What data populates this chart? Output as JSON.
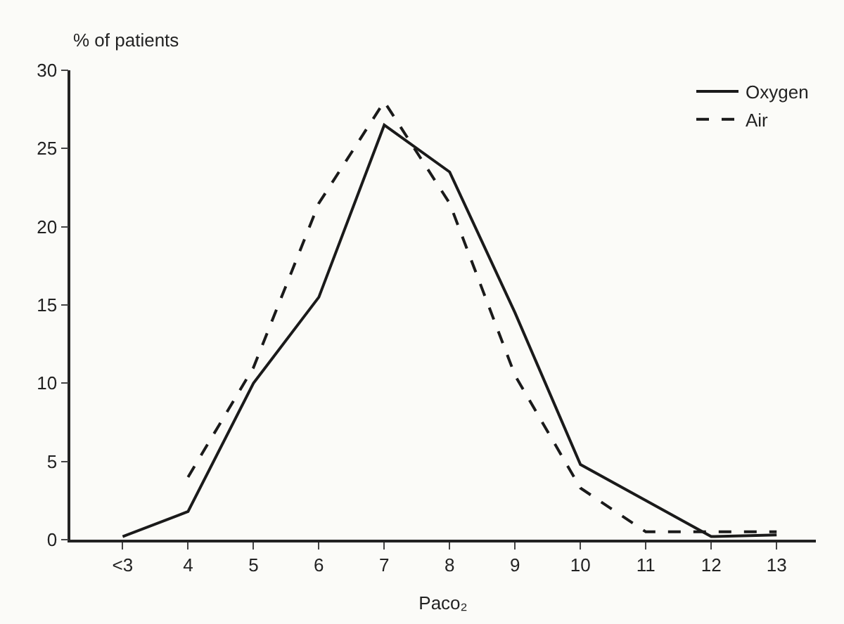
{
  "chart_data": {
    "type": "line",
    "xlabel": "Paco₂",
    "ylabel": "% of patients",
    "categories": [
      "<3",
      "4",
      "5",
      "6",
      "7",
      "8",
      "9",
      "10",
      "11",
      "12",
      "13"
    ],
    "series": [
      {
        "name": "Oxygen",
        "color": "#1a1a1a",
        "line_style": "solid",
        "values": [
          0.2,
          1.8,
          10,
          15.5,
          26.5,
          23.5,
          14.5,
          4.8,
          2.5,
          0.2,
          0.3
        ]
      },
      {
        "name": "Air",
        "color": "#1a1a1a",
        "line_style": "dashed",
        "values": [
          null,
          4,
          11,
          21.5,
          28,
          21.5,
          10.5,
          3.3,
          0.5,
          0.5,
          0.5
        ]
      }
    ],
    "ylim": [
      0,
      30
    ],
    "yticks": [
      0,
      5,
      10,
      15,
      20,
      25,
      30
    ],
    "grid": false,
    "legend": "top right",
    "marker": "none"
  }
}
